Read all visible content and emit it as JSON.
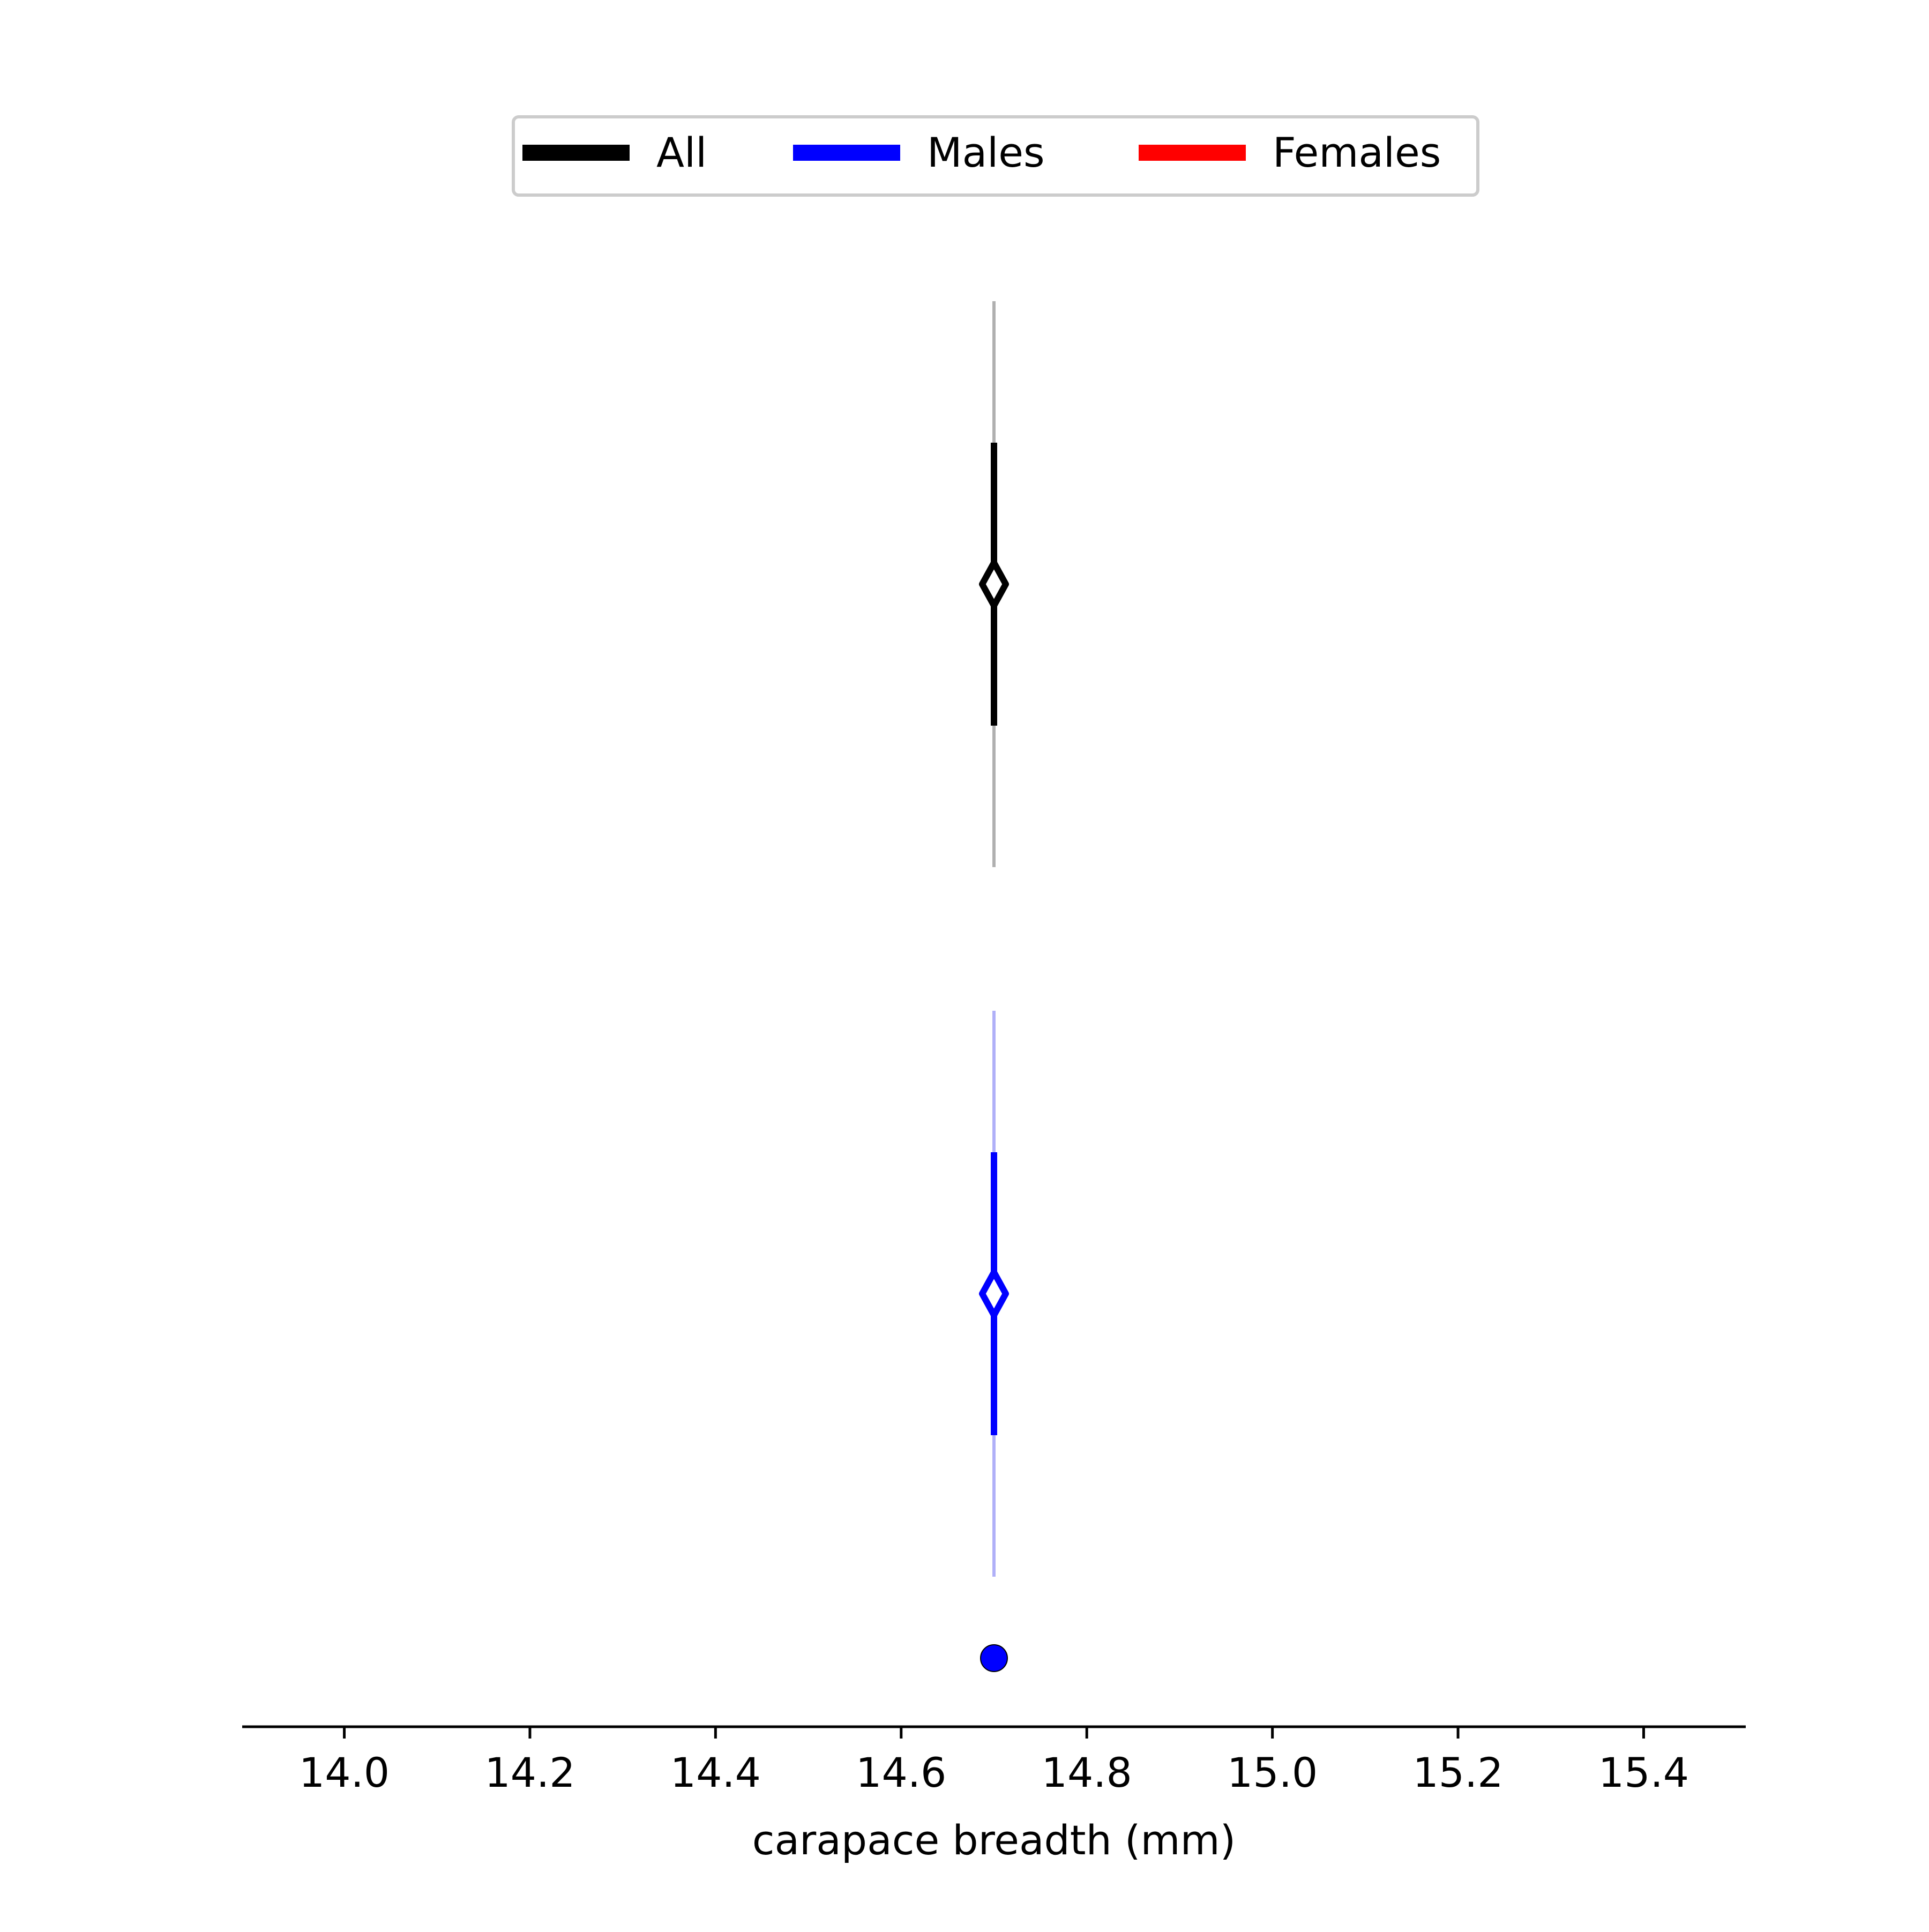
{
  "chart_data": {
    "type": "scatter",
    "title": "",
    "xlabel": "carapace breadth (mm)",
    "ylabel": "",
    "xlim": [
      13.89,
      15.51
    ],
    "xticks": [
      "14.0",
      "14.2",
      "14.4",
      "14.6",
      "14.8",
      "15.0",
      "15.2",
      "15.4"
    ],
    "xtick_values": [
      14.0,
      14.2,
      14.4,
      14.6,
      14.8,
      15.0,
      15.2,
      15.4
    ],
    "grid": false,
    "legend": {
      "placement": "top-center",
      "entries": [
        {
          "label": "All",
          "color": "#000000"
        },
        {
          "label": "Males",
          "color": "#0000ff"
        },
        {
          "label": "Females",
          "color": "#ff0000"
        }
      ]
    },
    "series": [
      {
        "name": "All",
        "color": "#000000",
        "center": 14.7,
        "outer_range": [
          14.7,
          14.7
        ],
        "inner_range": [
          14.7,
          14.7
        ],
        "marker": "open-diamond"
      },
      {
        "name": "Males",
        "color": "#0000ff",
        "center": 14.7,
        "outer_range": [
          14.7,
          14.7
        ],
        "inner_range": [
          14.7,
          14.7
        ],
        "marker": "open-diamond",
        "points": [
          14.7
        ]
      },
      {
        "name": "Females",
        "color": "#ff0000",
        "points": []
      }
    ]
  }
}
